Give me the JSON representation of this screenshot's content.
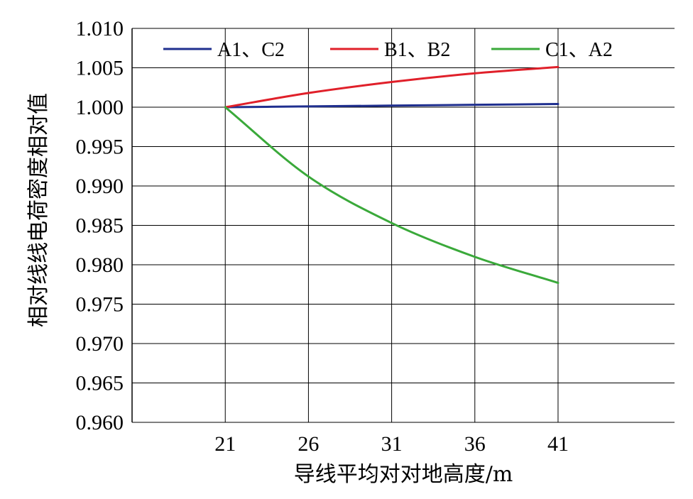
{
  "colors": {
    "series_a": "#1f2f8f",
    "series_b": "#e0202a",
    "series_c": "#3aa93a",
    "grid": "#000000",
    "background": "#ffffff"
  },
  "chart_data": {
    "type": "line",
    "title": "",
    "xlabel": "导线平均对对地高度/m",
    "ylabel": "相对线线电荷密度相对值",
    "xlim": [
      15.4,
      48
    ],
    "ylim": [
      0.96,
      1.01
    ],
    "x_ticks": [
      21,
      26,
      31,
      36,
      41
    ],
    "x_tick_labels": [
      "21",
      "26",
      "31",
      "36",
      "41"
    ],
    "y_ticks": [
      0.96,
      0.965,
      0.97,
      0.975,
      0.98,
      0.985,
      0.99,
      0.995,
      1.0,
      1.005,
      1.01
    ],
    "y_tick_labels": [
      "0.960",
      "0.965",
      "0.970",
      "0.975",
      "0.980",
      "0.985",
      "0.990",
      "0.995",
      "1.000",
      "1.005",
      "1.010"
    ],
    "grid": true,
    "legend_position": "top",
    "series": [
      {
        "name": "A1、C2",
        "color_key": "series_a",
        "x": [
          21,
          26,
          31,
          36,
          41
        ],
        "y": [
          1.0,
          1.0001,
          1.0002,
          1.0003,
          1.0004
        ]
      },
      {
        "name": "B1、B2",
        "color_key": "series_b",
        "x": [
          21,
          26,
          31,
          36,
          41
        ],
        "y": [
          1.0,
          1.0018,
          1.0032,
          1.0043,
          1.0051
        ]
      },
      {
        "name": "C1、A2",
        "color_key": "series_c",
        "x": [
          21,
          26,
          31,
          36,
          41
        ],
        "y": [
          1.0,
          0.9912,
          0.9853,
          0.981,
          0.9777
        ]
      }
    ]
  }
}
